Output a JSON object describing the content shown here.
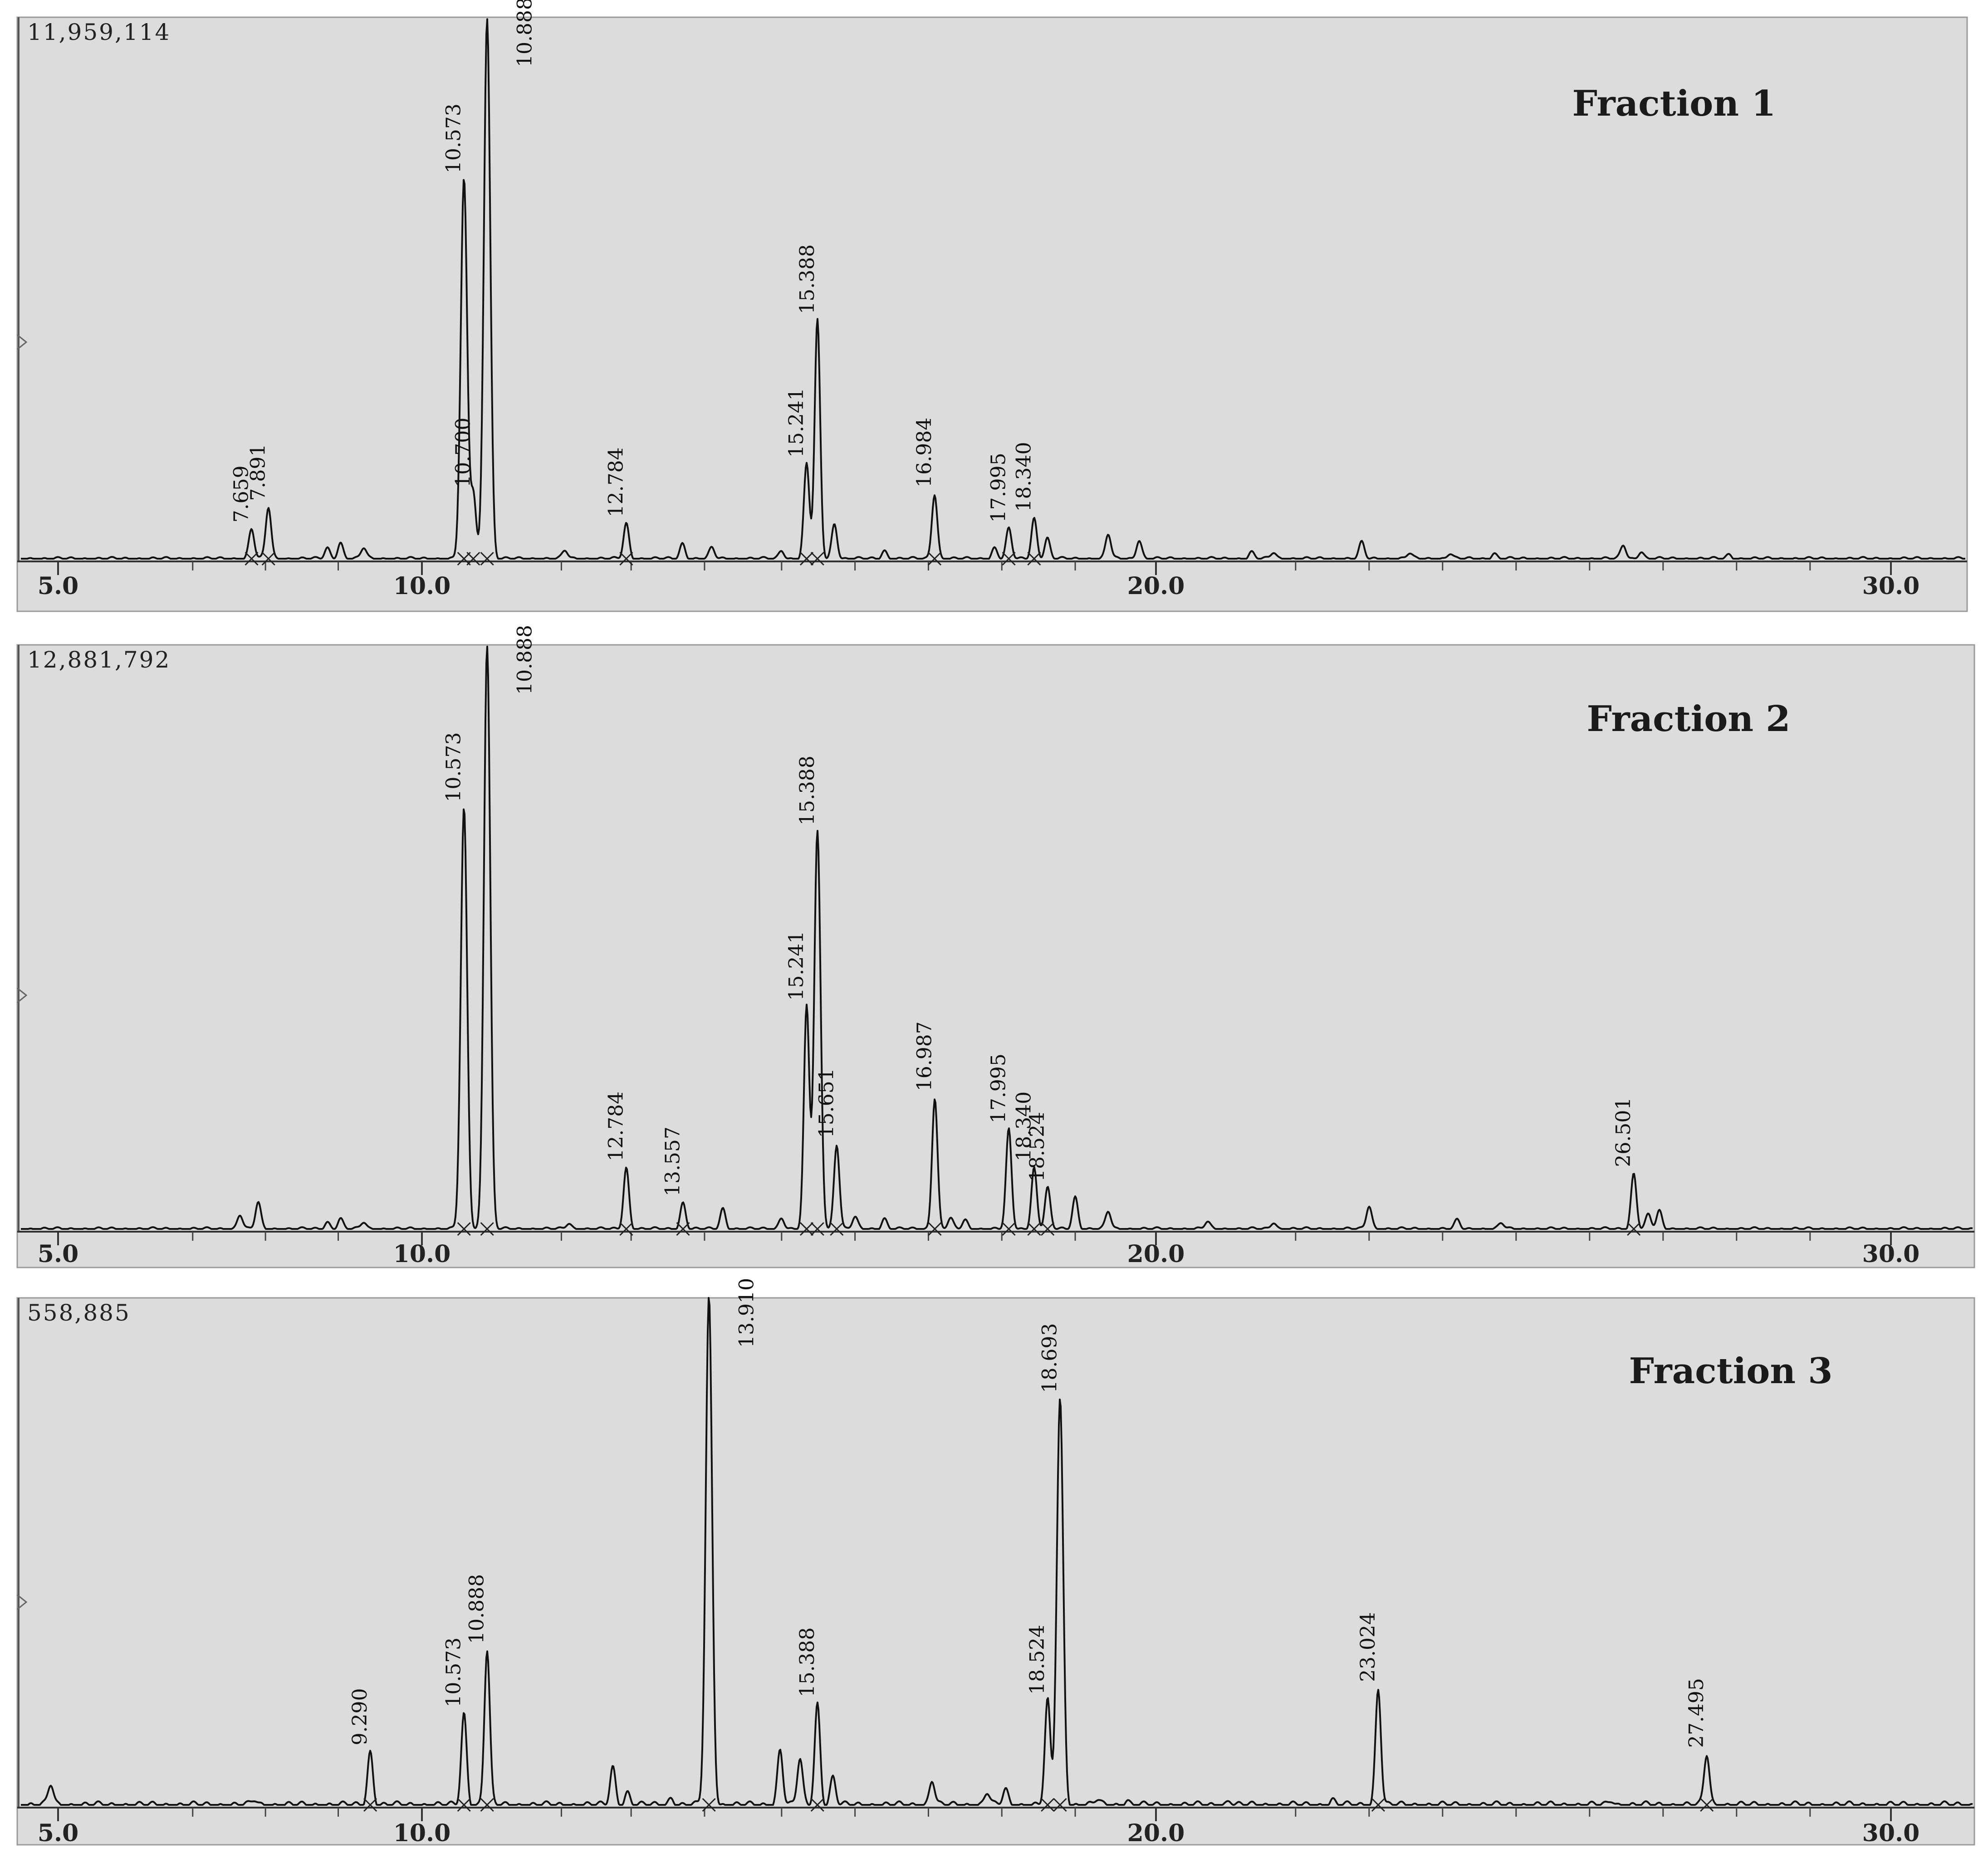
{
  "chart_data": [
    {
      "type": "line",
      "title": "Fraction 1",
      "y_max_label": "11,959,114",
      "xlim": [
        4.5,
        31.0
      ],
      "x_tick_labels": [
        "5.0",
        "10.0",
        "20.0",
        "30.0"
      ],
      "x_tick_values": [
        5.0,
        10.0,
        20.0,
        30.0
      ],
      "grid": false,
      "peaks": [
        {
          "rt": 7.659,
          "label": "7.659",
          "rel_height": 0.055
        },
        {
          "rt": 7.891,
          "label": "7.891",
          "rel_height": 0.095
        },
        {
          "rt": 10.573,
          "label": "10.573",
          "rel_height": 0.7
        },
        {
          "rt": 10.7,
          "label": "10.700",
          "rel_height": 0.12
        },
        {
          "rt": 10.888,
          "label": "10.888",
          "rel_height": 1.0
        },
        {
          "rt": 12.784,
          "label": "12.784",
          "rel_height": 0.065
        },
        {
          "rt": 15.241,
          "label": "15.241",
          "rel_height": 0.175
        },
        {
          "rt": 15.388,
          "label": "15.388",
          "rel_height": 0.44
        },
        {
          "rt": 16.984,
          "label": "16.984",
          "rel_height": 0.12
        },
        {
          "rt": 17.995,
          "label": "17.995",
          "rel_height": 0.055
        },
        {
          "rt": 18.34,
          "label": "18.340",
          "rel_height": 0.075
        }
      ],
      "minor_peaks": [
        [
          8.7,
          0.02
        ],
        [
          8.88,
          0.03
        ],
        [
          9.2,
          0.02
        ],
        [
          11.95,
          0.015
        ],
        [
          13.55,
          0.028
        ],
        [
          13.95,
          0.02
        ],
        [
          14.9,
          0.016
        ],
        [
          15.62,
          0.065
        ],
        [
          16.3,
          0.015
        ],
        [
          17.8,
          0.02
        ],
        [
          18.52,
          0.038
        ],
        [
          19.35,
          0.045
        ],
        [
          19.77,
          0.035
        ],
        [
          21.3,
          0.012
        ],
        [
          21.6,
          0.012
        ],
        [
          22.8,
          0.03
        ],
        [
          23.45,
          0.01
        ],
        [
          24.0,
          0.01
        ],
        [
          24.6,
          0.01
        ],
        [
          26.36,
          0.025
        ],
        [
          26.6,
          0.014
        ],
        [
          27.8,
          0.008
        ]
      ]
    },
    {
      "type": "line",
      "title": "Fraction 2",
      "y_max_label": "12,881,792",
      "xlim": [
        4.5,
        31.0
      ],
      "x_tick_labels": [
        "5.0",
        "10.0",
        "20.0",
        "30.0"
      ],
      "x_tick_values": [
        5.0,
        10.0,
        20.0,
        30.0
      ],
      "grid": false,
      "peaks": [
        {
          "rt": 10.573,
          "label": "10.573",
          "rel_height": 0.72
        },
        {
          "rt": 10.888,
          "label": "10.888",
          "rel_height": 1.0
        },
        {
          "rt": 12.784,
          "label": "12.784",
          "rel_height": 0.105
        },
        {
          "rt": 13.557,
          "label": "13.557",
          "rel_height": 0.045
        },
        {
          "rt": 15.241,
          "label": "15.241",
          "rel_height": 0.38
        },
        {
          "rt": 15.388,
          "label": "15.388",
          "rel_height": 0.68
        },
        {
          "rt": 15.651,
          "label": "15.651",
          "rel_height": 0.145
        },
        {
          "rt": 16.987,
          "label": "16.987",
          "rel_height": 0.225
        },
        {
          "rt": 17.995,
          "label": "17.995",
          "rel_height": 0.17
        },
        {
          "rt": 18.34,
          "label": "18.340",
          "rel_height": 0.105
        },
        {
          "rt": 18.524,
          "label": "18.524",
          "rel_height": 0.07
        },
        {
          "rt": 26.501,
          "label": "26.501",
          "rel_height": 0.095
        }
      ],
      "minor_peaks": [
        [
          7.5,
          0.025
        ],
        [
          7.75,
          0.045
        ],
        [
          8.7,
          0.012
        ],
        [
          8.88,
          0.018
        ],
        [
          9.2,
          0.012
        ],
        [
          12.0,
          0.01
        ],
        [
          14.1,
          0.035
        ],
        [
          14.9,
          0.02
        ],
        [
          15.9,
          0.02
        ],
        [
          16.3,
          0.018
        ],
        [
          17.2,
          0.018
        ],
        [
          17.4,
          0.015
        ],
        [
          18.9,
          0.055
        ],
        [
          19.35,
          0.03
        ],
        [
          20.7,
          0.012
        ],
        [
          21.6,
          0.012
        ],
        [
          22.9,
          0.04
        ],
        [
          24.1,
          0.015
        ],
        [
          24.7,
          0.01
        ],
        [
          26.7,
          0.025
        ],
        [
          26.85,
          0.03
        ]
      ]
    },
    {
      "type": "line",
      "title": "Fraction 3",
      "y_max_label": "558,885",
      "xlim": [
        4.5,
        31.0
      ],
      "x_tick_labels": [
        "5.0",
        "10.0",
        "20.0",
        "30.0"
      ],
      "x_tick_values": [
        5.0,
        10.0,
        20.0,
        30.0
      ],
      "grid": false,
      "peaks": [
        {
          "rt": 9.29,
          "label": "9.290",
          "rel_height": 0.105
        },
        {
          "rt": 10.573,
          "label": "10.573",
          "rel_height": 0.18
        },
        {
          "rt": 10.888,
          "label": "10.888",
          "rel_height": 0.305
        },
        {
          "rt": 13.91,
          "label": "13.910",
          "rel_height": 1.0
        },
        {
          "rt": 15.388,
          "label": "15.388",
          "rel_height": 0.2
        },
        {
          "rt": 18.524,
          "label": "18.524",
          "rel_height": 0.205
        },
        {
          "rt": 18.693,
          "label": "18.693",
          "rel_height": 0.8
        },
        {
          "rt": 23.024,
          "label": "23.024",
          "rel_height": 0.23
        },
        {
          "rt": 27.495,
          "label": "27.495",
          "rel_height": 0.1
        }
      ],
      "minor_peaks": [
        [
          4.9,
          0.04
        ],
        [
          7.7,
          0.01
        ],
        [
          12.6,
          0.075
        ],
        [
          12.8,
          0.025
        ],
        [
          13.4,
          0.015
        ],
        [
          14.88,
          0.11
        ],
        [
          15.15,
          0.09
        ],
        [
          15.6,
          0.055
        ],
        [
          16.95,
          0.05
        ],
        [
          17.7,
          0.025
        ],
        [
          17.95,
          0.03
        ],
        [
          19.2,
          0.01
        ],
        [
          19.6,
          0.01
        ],
        [
          21.0,
          0.01
        ],
        [
          22.4,
          0.01
        ],
        [
          26.2,
          0.01
        ]
      ]
    }
  ]
}
